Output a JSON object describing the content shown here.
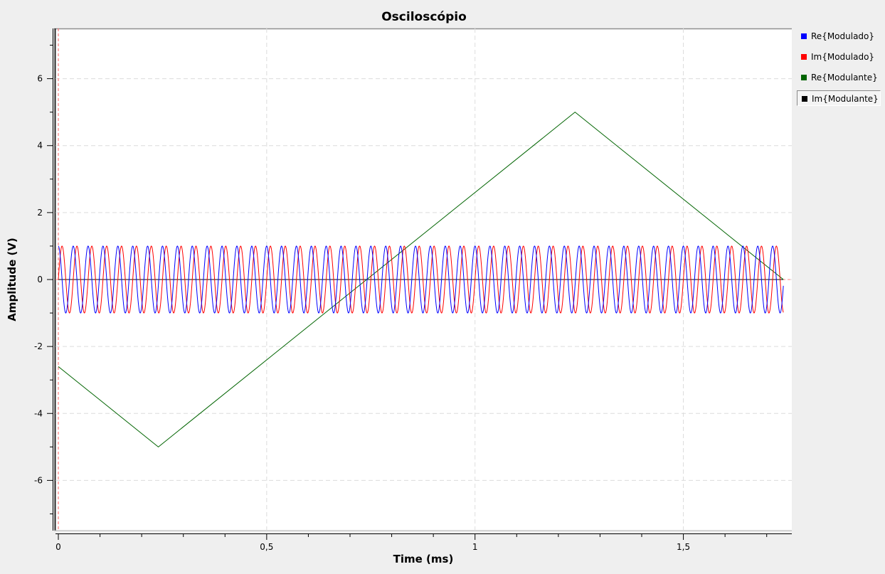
{
  "chart_data": {
    "type": "line",
    "title": "Osciloscópio",
    "xlabel": "Time (ms)",
    "ylabel": "Amplitude (V)",
    "xlim": [
      0,
      1.75
    ],
    "ylim": [
      -7.5,
      7.5
    ],
    "x_ticks": [
      0,
      0.5,
      1,
      1.5
    ],
    "x_tick_labels": [
      "0",
      "0,5",
      "1",
      "1,5"
    ],
    "y_ticks": [
      -6,
      -4,
      -2,
      0,
      2,
      4,
      6
    ],
    "y_tick_labels": [
      "-6",
      "-4",
      "-2",
      "0",
      "2",
      "4",
      "6"
    ],
    "grid": true,
    "legend_position": "right",
    "series": [
      {
        "name": "Re{Modulado}",
        "color": "#0000ff",
        "kind": "sinusoid",
        "amplitude": 1,
        "frequency_khz": 28,
        "phase": "cos",
        "x_range": [
          0,
          1.74
        ]
      },
      {
        "name": "Im{Modulado}",
        "color": "#ff0000",
        "kind": "sinusoid",
        "amplitude": 1,
        "frequency_khz": 28,
        "phase": "sin",
        "x_range": [
          0,
          1.74
        ]
      },
      {
        "name": "Re{Modulante}",
        "color": "#006400",
        "kind": "polyline",
        "x": [
          0,
          0.24,
          1.24,
          1.74
        ],
        "y": [
          -2.6,
          -5,
          5,
          0
        ]
      },
      {
        "name": "Im{Modulante}",
        "color": "#000000",
        "kind": "polyline",
        "x": [
          0,
          1.74
        ],
        "y": [
          0,
          0
        ]
      }
    ],
    "markers": [
      {
        "axis": "x",
        "value": 0,
        "color": "#ff6060",
        "style": "dashed"
      },
      {
        "axis": "y",
        "value": 0,
        "color": "#ff8080",
        "style": "dashed"
      }
    ]
  }
}
